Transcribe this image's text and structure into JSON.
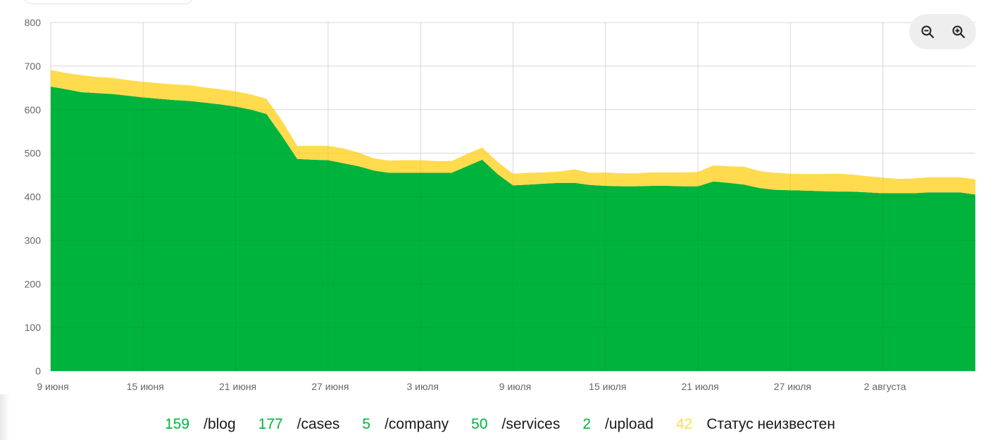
{
  "colors": {
    "green": "#00b33c",
    "yellow": "#ffdb4d",
    "grid": "#e5e5e5",
    "tick_text": "#666666"
  },
  "zoom": {
    "zoom_out_icon": "zoom-out-icon",
    "zoom_in_icon": "zoom-in-icon"
  },
  "chart_data": {
    "type": "area",
    "stacked": true,
    "ylim": [
      0,
      800
    ],
    "yticks": [
      0,
      100,
      200,
      300,
      400,
      500,
      600,
      700,
      800
    ],
    "x_start": "2024-06-09",
    "x_end": "2024-08-08",
    "xticks": [
      {
        "date": "2024-06-09",
        "label": "9 июня"
      },
      {
        "date": "2024-06-15",
        "label": "15 июня"
      },
      {
        "date": "2024-06-21",
        "label": "21 июня"
      },
      {
        "date": "2024-06-27",
        "label": "27 июня"
      },
      {
        "date": "2024-07-03",
        "label": "3 июля"
      },
      {
        "date": "2024-07-09",
        "label": "9 июля"
      },
      {
        "date": "2024-07-15",
        "label": "15 июля"
      },
      {
        "date": "2024-07-21",
        "label": "21 июля"
      },
      {
        "date": "2024-07-27",
        "label": "27 июля"
      },
      {
        "date": "2024-08-02",
        "label": "2 августа"
      }
    ],
    "x": [
      "2024-06-09",
      "2024-06-10",
      "2024-06-11",
      "2024-06-12",
      "2024-06-13",
      "2024-06-14",
      "2024-06-15",
      "2024-06-16",
      "2024-06-17",
      "2024-06-18",
      "2024-06-19",
      "2024-06-20",
      "2024-06-21",
      "2024-06-22",
      "2024-06-23",
      "2024-06-24",
      "2024-06-25",
      "2024-06-26",
      "2024-06-27",
      "2024-06-28",
      "2024-06-29",
      "2024-06-30",
      "2024-07-01",
      "2024-07-02",
      "2024-07-03",
      "2024-07-04",
      "2024-07-05",
      "2024-07-06",
      "2024-07-07",
      "2024-07-08",
      "2024-07-09",
      "2024-07-10",
      "2024-07-11",
      "2024-07-12",
      "2024-07-13",
      "2024-07-14",
      "2024-07-15",
      "2024-07-16",
      "2024-07-17",
      "2024-07-18",
      "2024-07-19",
      "2024-07-20",
      "2024-07-21",
      "2024-07-22",
      "2024-07-23",
      "2024-07-24",
      "2024-07-25",
      "2024-07-26",
      "2024-07-27",
      "2024-07-28",
      "2024-07-29",
      "2024-07-30",
      "2024-07-31",
      "2024-08-01",
      "2024-08-02",
      "2024-08-03",
      "2024-08-04",
      "2024-08-05",
      "2024-08-06",
      "2024-08-07",
      "2024-08-08"
    ],
    "series": [
      {
        "color": "#00b33c",
        "values": [
          653,
          647,
          640,
          638,
          636,
          632,
          628,
          625,
          622,
          620,
          616,
          612,
          607,
          600,
          590,
          540,
          487,
          485,
          484,
          477,
          470,
          460,
          455,
          455,
          455,
          455,
          455,
          470,
          485,
          452,
          426,
          428,
          430,
          432,
          432,
          427,
          425,
          424,
          424,
          425,
          425,
          424,
          424,
          435,
          432,
          428,
          420,
          416,
          415,
          414,
          413,
          412,
          412,
          410,
          408,
          408,
          408,
          410,
          410,
          410,
          405
        ]
      },
      {
        "color": "#ffdb4d",
        "values": [
          38,
          37,
          39,
          37,
          37,
          36,
          36,
          36,
          36,
          36,
          35,
          35,
          35,
          35,
          35,
          35,
          30,
          32,
          33,
          34,
          31,
          28,
          28,
          29,
          29,
          27,
          27,
          28,
          28,
          28,
          27,
          27,
          26,
          26,
          31,
          28,
          31,
          30,
          30,
          31,
          31,
          32,
          33,
          37,
          38,
          41,
          39,
          39,
          38,
          38,
          39,
          41,
          39,
          37,
          36,
          33,
          34,
          35,
          35,
          35,
          35
        ]
      }
    ]
  },
  "legend": [
    {
      "value": "159",
      "label": "/blog",
      "color": "#00b33c"
    },
    {
      "value": "177",
      "label": "/cases",
      "color": "#00b33c"
    },
    {
      "value": "5",
      "label": "/company",
      "color": "#00b33c"
    },
    {
      "value": "50",
      "label": "/services",
      "color": "#00b33c"
    },
    {
      "value": "2",
      "label": "/upload",
      "color": "#00b33c"
    },
    {
      "value": "42",
      "label": "Статус неизвестен",
      "color": "#ffdb4d"
    }
  ]
}
